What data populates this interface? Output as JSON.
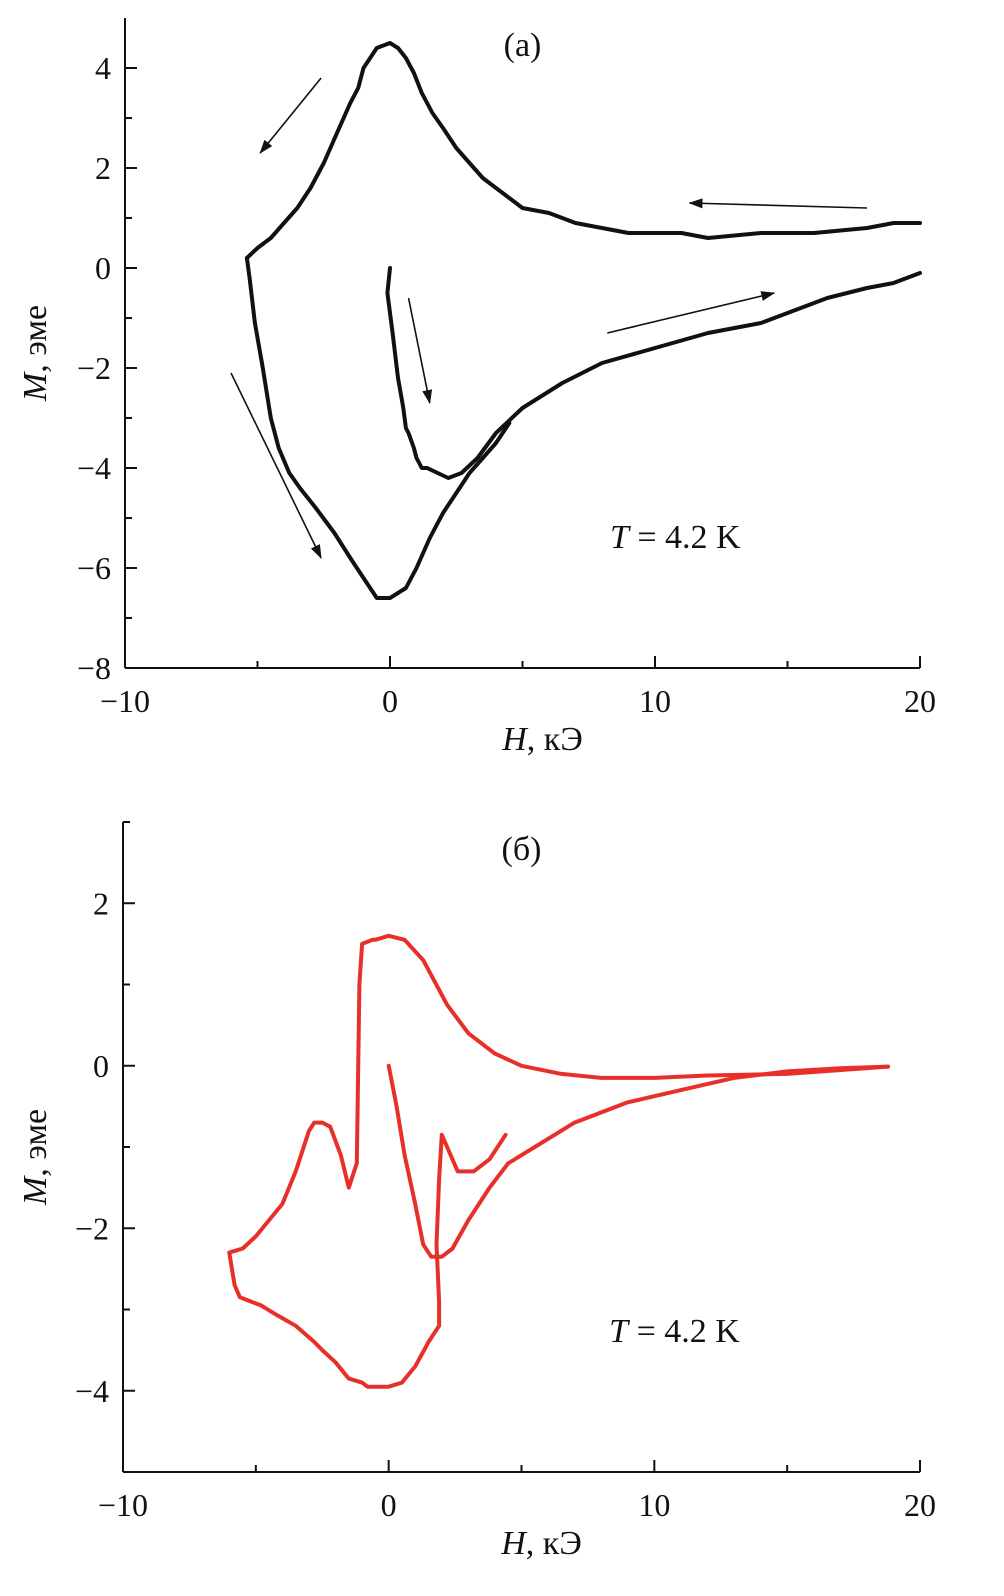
{
  "chart_data": [
    {
      "type": "line",
      "title": "(а)",
      "xlabel_symbol": "H",
      "xlabel_unit": ", кЭ",
      "ylabel_symbol": "M",
      "ylabel_unit": ", эме",
      "xlim": [
        -10,
        20
      ],
      "ylim": [
        -8,
        5
      ],
      "xticks": [
        -10,
        0,
        10,
        20
      ],
      "xtick_labels": [
        "−10",
        "0",
        "10",
        "20"
      ],
      "xminor": [
        -5,
        5,
        15
      ],
      "yticks": [
        -8,
        -6,
        -4,
        -2,
        0,
        2,
        4
      ],
      "ytick_labels": [
        "−8",
        "−6",
        "−4",
        "−2",
        "0",
        "2",
        "4"
      ],
      "yminor": [
        -7,
        -5,
        -3,
        -1,
        1,
        3
      ],
      "annotation_symbol": "T",
      "annotation_value": " = 4.2 K",
      "annotation_at": [
        8.3,
        -5.6
      ],
      "color": "#111111",
      "series": [
        {
          "x": [
            0.0,
            -0.1,
            0.1,
            0.3,
            0.5,
            0.6,
            0.7,
            0.9,
            1.0,
            1.2,
            1.4,
            1.8,
            2.2,
            2.7,
            3.3,
            4.0,
            5.0,
            6.5,
            8.0,
            10.0,
            12.0,
            14.0,
            15.5,
            16.5,
            18.0,
            19.0,
            20.0
          ],
          "y": [
            0.0,
            -0.5,
            -1.3,
            -2.2,
            -2.8,
            -3.2,
            -3.3,
            -3.6,
            -3.8,
            -4.0,
            -4.0,
            -4.1,
            -4.2,
            -4.1,
            -3.8,
            -3.3,
            -2.8,
            -2.3,
            -1.9,
            -1.6,
            -1.3,
            -1.1,
            -0.8,
            -0.6,
            -0.4,
            -0.3,
            -0.1
          ]
        },
        {
          "x": [
            20.0,
            19.0,
            18.0,
            16.0,
            14.0,
            12.0,
            11.0,
            10.0,
            9.0,
            8.0,
            7.0,
            6.0,
            5.0,
            4.5,
            4.0,
            3.5,
            3.0,
            2.5,
            2.0,
            1.6,
            1.2,
            0.9,
            0.6,
            0.3,
            0.0,
            -0.5,
            -1.0,
            -1.2,
            -1.5,
            -2.0,
            -2.5,
            -3.0,
            -3.5,
            -4.0,
            -4.5,
            -5.0,
            -5.4
          ],
          "y": [
            0.9,
            0.9,
            0.8,
            0.7,
            0.7,
            0.6,
            0.7,
            0.7,
            0.7,
            0.8,
            0.9,
            1.1,
            1.2,
            1.4,
            1.6,
            1.8,
            2.1,
            2.4,
            2.8,
            3.1,
            3.5,
            3.9,
            4.2,
            4.4,
            4.5,
            4.4,
            4.0,
            3.6,
            3.3,
            2.7,
            2.1,
            1.6,
            1.2,
            0.9,
            0.6,
            0.4,
            0.2
          ]
        },
        {
          "x": [
            -5.4,
            -5.3,
            -5.1,
            -4.8,
            -4.5,
            -4.2,
            -3.8,
            -3.4,
            -2.8,
            -2.1,
            -1.5,
            -1.0,
            -0.5,
            -0.4,
            0.0,
            0.3,
            0.6,
            1.0,
            1.5,
            2.0,
            2.5,
            3.0,
            3.5,
            4.0,
            4.5
          ],
          "y": [
            0.2,
            -0.2,
            -1.1,
            -2.0,
            -3.0,
            -3.6,
            -4.1,
            -4.4,
            -4.8,
            -5.3,
            -5.8,
            -6.2,
            -6.6,
            -6.6,
            -6.6,
            -6.5,
            -6.4,
            -6.0,
            -5.4,
            -4.9,
            -4.5,
            -4.1,
            -3.8,
            -3.5,
            -3.1
          ]
        }
      ],
      "arrows": [
        {
          "from": [
            -2.6,
            3.8
          ],
          "to": [
            -4.9,
            2.3
          ]
        },
        {
          "from": [
            18.0,
            1.2
          ],
          "to": [
            11.3,
            1.3
          ]
        },
        {
          "from": [
            0.7,
            -0.6
          ],
          "to": [
            1.5,
            -2.7
          ]
        },
        {
          "from": [
            8.2,
            -1.3
          ],
          "to": [
            14.5,
            -0.5
          ]
        },
        {
          "from": [
            -6.0,
            -2.1
          ],
          "to": [
            -2.6,
            -5.8
          ]
        }
      ]
    },
    {
      "type": "line",
      "title": "(б)",
      "xlabel_symbol": "H",
      "xlabel_unit": ", кЭ",
      "ylabel_symbol": "M",
      "ylabel_unit": ", эме",
      "xlim": [
        -10,
        20
      ],
      "ylim": [
        -5,
        3
      ],
      "xticks": [
        -10,
        0,
        10,
        20
      ],
      "xtick_labels": [
        "−10",
        "0",
        "10",
        "20"
      ],
      "xminor": [
        -5,
        5,
        15
      ],
      "yticks": [
        -4,
        -2,
        0,
        2
      ],
      "ytick_labels": [
        "−4",
        "−2",
        "0",
        "2"
      ],
      "yminor": [
        -5,
        -3,
        -1,
        1,
        3
      ],
      "annotation_symbol": "T",
      "annotation_value": " = 4.2 K",
      "annotation_at": [
        8.3,
        -3.4
      ],
      "color": "#e8302a",
      "series": [
        {
          "x": [
            0.0,
            0.3,
            0.6,
            1.0,
            1.3,
            1.6,
            2.0,
            2.4,
            3.0,
            3.8,
            4.5,
            5.5,
            7.0,
            9.0,
            11.0,
            13.0,
            15.0,
            17.0,
            18.8
          ],
          "y": [
            0.0,
            -0.5,
            -1.1,
            -1.7,
            -2.2,
            -2.35,
            -2.35,
            -2.25,
            -1.9,
            -1.5,
            -1.2,
            -1.0,
            -0.7,
            -0.45,
            -0.3,
            -0.15,
            -0.07,
            -0.03,
            -0.01
          ]
        },
        {
          "x": [
            18.8,
            15.0,
            12.0,
            10.0,
            8.0,
            6.5,
            5.0,
            4.0,
            3.0,
            2.2,
            1.3,
            0.6,
            0.0,
            -0.5,
            -0.6,
            -1.0,
            -1.1,
            -1.2,
            -1.3,
            -1.5,
            -1.8,
            -2.2,
            -2.5,
            -2.8,
            -3.0,
            -3.2,
            -3.5,
            -4.0,
            -4.5,
            -5.0,
            -5.5,
            -6.0,
            -5.9,
            -5.8,
            -5.6,
            -5.2,
            -4.8,
            -4.3,
            -3.5,
            -2.8,
            -2.5,
            -2.0,
            -1.5,
            -1.0,
            -0.8,
            -0.3,
            0.0,
            0.5,
            1.0,
            1.5,
            1.9,
            1.9,
            1.8,
            1.9,
            2.0,
            2.2,
            2.6,
            3.2,
            3.8,
            4.4
          ],
          "y": [
            -0.01,
            -0.1,
            -0.12,
            -0.15,
            -0.15,
            -0.1,
            0.0,
            0.15,
            0.4,
            0.75,
            1.3,
            1.55,
            1.6,
            1.55,
            1.55,
            1.5,
            1.0,
            -1.2,
            -1.3,
            -1.5,
            -1.1,
            -0.75,
            -0.7,
            -0.7,
            -0.8,
            -1.0,
            -1.3,
            -1.7,
            -1.9,
            -2.1,
            -2.25,
            -2.3,
            -2.5,
            -2.7,
            -2.85,
            -2.9,
            -2.95,
            -3.05,
            -3.2,
            -3.4,
            -3.5,
            -3.65,
            -3.85,
            -3.9,
            -3.95,
            -3.95,
            -3.95,
            -3.9,
            -3.7,
            -3.4,
            -3.2,
            -2.9,
            -2.2,
            -1.4,
            -0.85,
            -1.0,
            -1.3,
            -1.3,
            -1.15,
            -0.85
          ]
        }
      ],
      "arrows": []
    }
  ]
}
